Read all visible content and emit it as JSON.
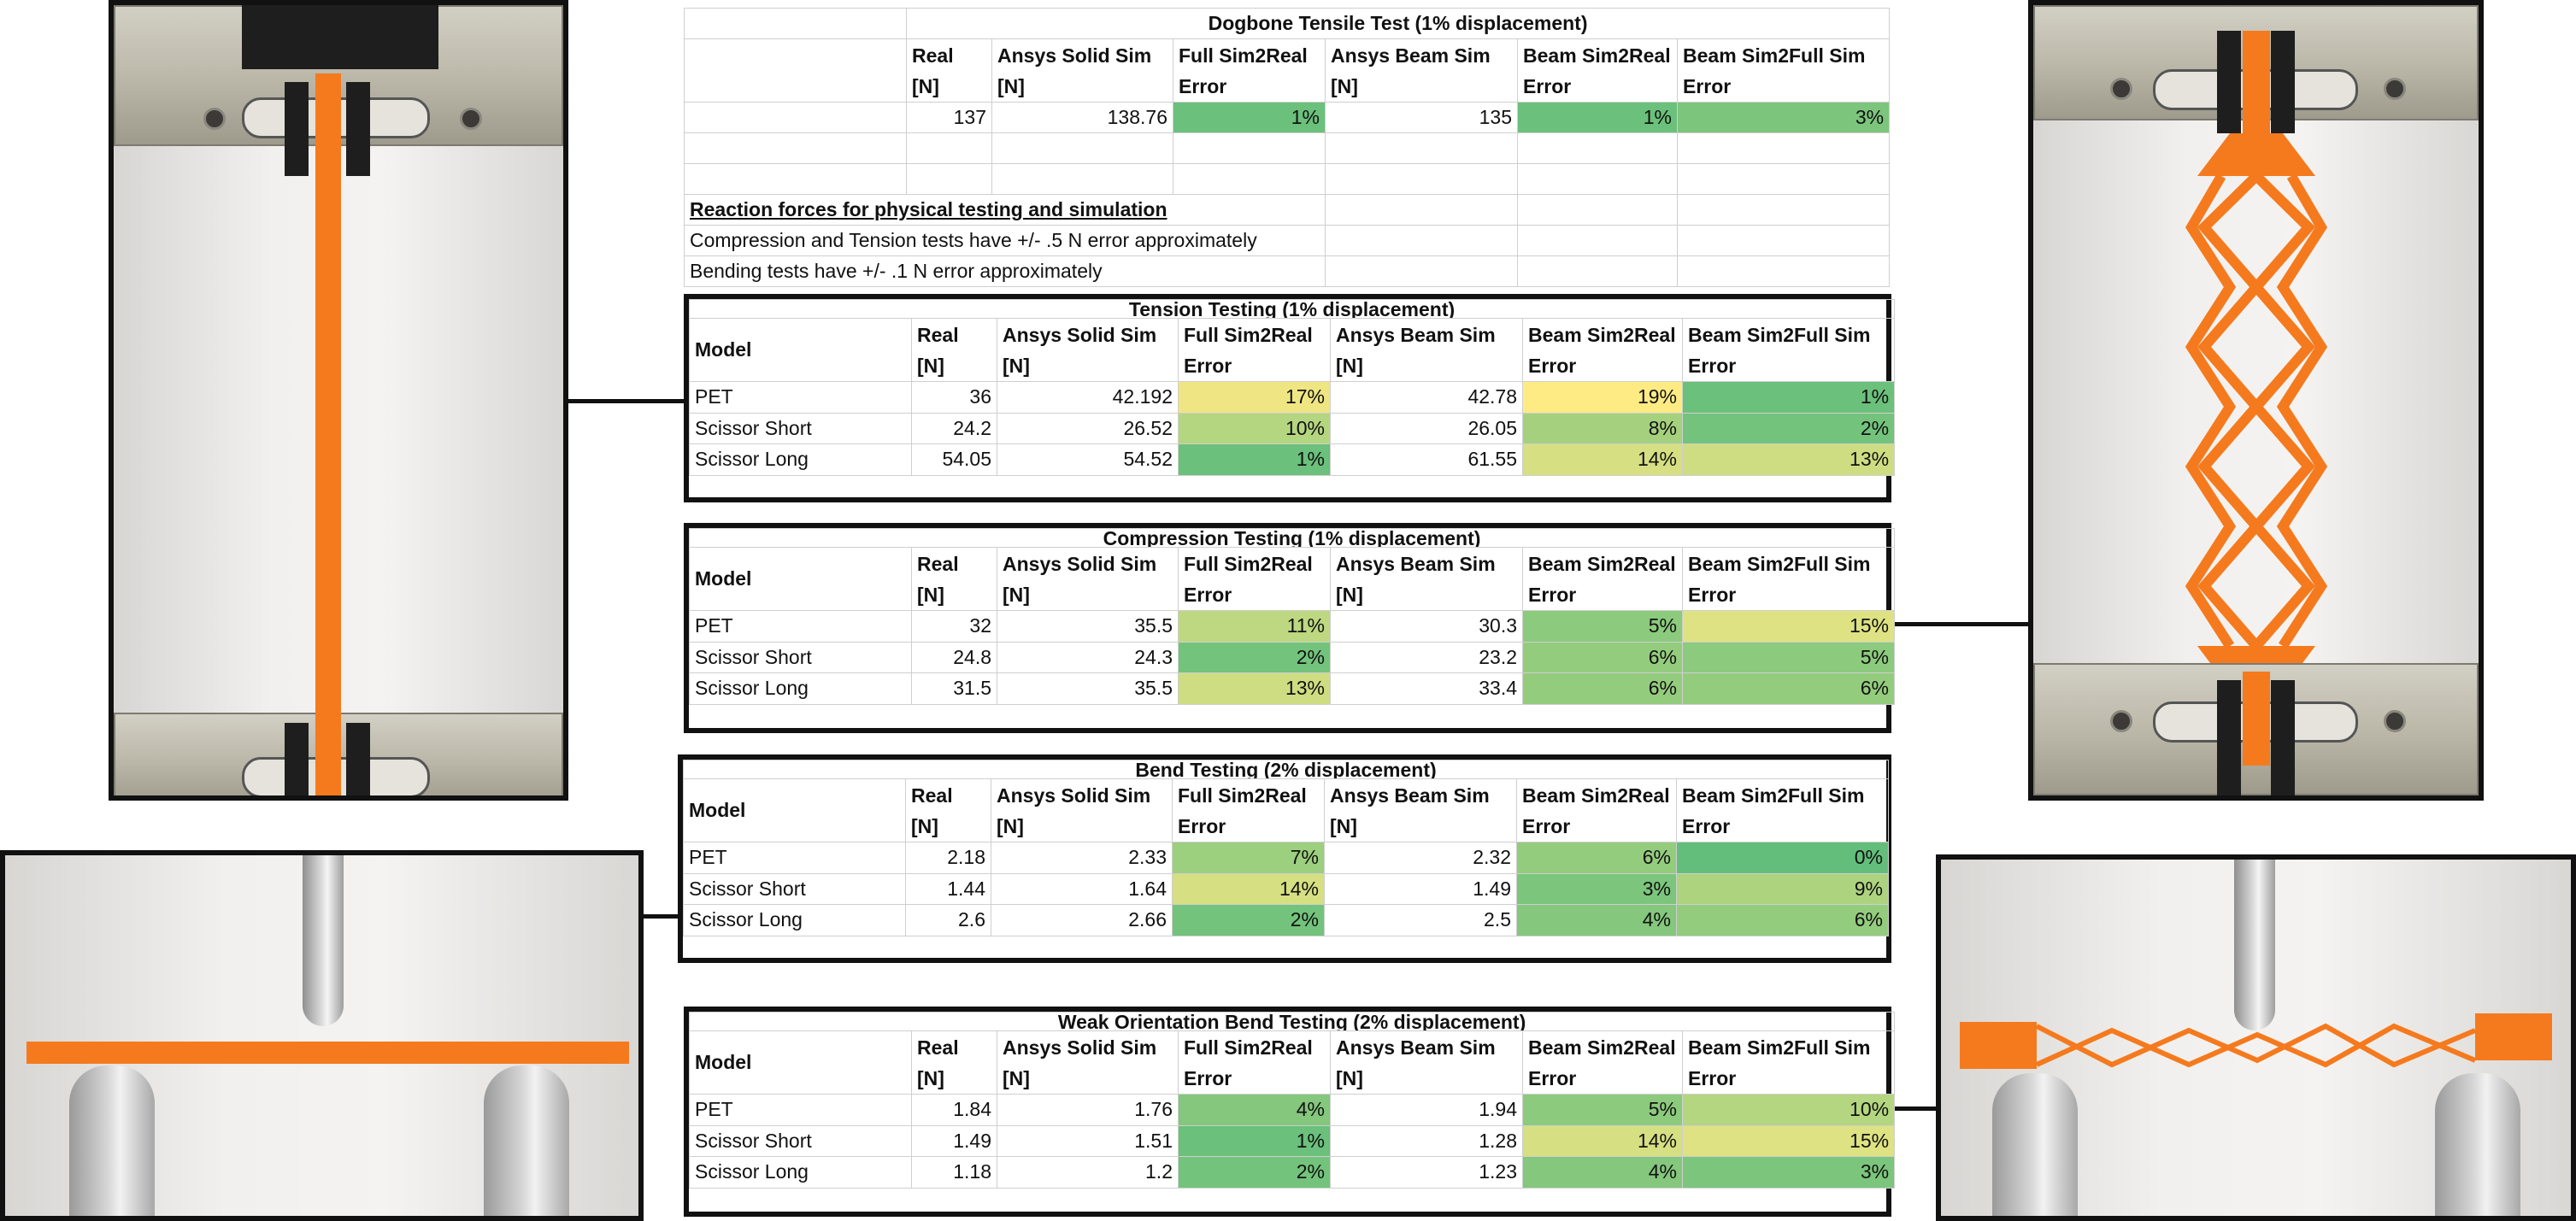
{
  "columns": {
    "model": "Model",
    "real": [
      "Real",
      "[N]"
    ],
    "solid": [
      "Ansys Solid Sim",
      "[N]"
    ],
    "full_err": [
      "Full Sim2Real",
      "Error"
    ],
    "beam": [
      "Ansys Beam Sim",
      "[N]"
    ],
    "beam_err": [
      "Beam Sim2Real",
      "Error"
    ],
    "beam_full": [
      "Beam Sim2Full Sim",
      "Error"
    ]
  },
  "dogbone": {
    "title": "Dogbone Tensile Test (1% displacement)",
    "row": {
      "real": "137",
      "solid": "138.76",
      "full_err": "1%",
      "beam": "135",
      "beam_err": "1%",
      "beam_full": "3%"
    }
  },
  "notes": {
    "heading": "Reaction forces for physical testing  and simulation",
    "line1": "Compression and Tension tests have +/- .5 N error approximately",
    "line2": "Bending tests have +/- .1 N error approximately"
  },
  "tension": {
    "title": "Tension Testing (1% displacement)",
    "rows": [
      {
        "model": "PET",
        "real": "36",
        "solid": "42.192",
        "full_err": "17%",
        "beam": "42.78",
        "beam_err": "19%",
        "beam_full": "1%"
      },
      {
        "model": "Scissor Short",
        "real": "24.2",
        "solid": "26.52",
        "full_err": "10%",
        "beam": "26.05",
        "beam_err": "8%",
        "beam_full": "2%"
      },
      {
        "model": "Scissor Long",
        "real": "54.05",
        "solid": "54.52",
        "full_err": "1%",
        "beam": "61.55",
        "beam_err": "14%",
        "beam_full": "13%"
      }
    ]
  },
  "compression": {
    "title": "Compression Testing  (1% displacement)",
    "rows": [
      {
        "model": "PET",
        "real": "32",
        "solid": "35.5",
        "full_err": "11%",
        "beam": "30.3",
        "beam_err": "5%",
        "beam_full": "15%"
      },
      {
        "model": "Scissor Short",
        "real": "24.8",
        "solid": "24.3",
        "full_err": "2%",
        "beam": "23.2",
        "beam_err": "6%",
        "beam_full": "5%"
      },
      {
        "model": "Scissor Long",
        "real": "31.5",
        "solid": "35.5",
        "full_err": "13%",
        "beam": "33.4",
        "beam_err": "6%",
        "beam_full": "6%"
      }
    ]
  },
  "bend": {
    "title": "Bend Testing  (2% displacement)",
    "rows": [
      {
        "model": "PET",
        "real": "2.18",
        "solid": "2.33",
        "full_err": "7%",
        "beam": "2.32",
        "beam_err": "6%",
        "beam_full": "0%"
      },
      {
        "model": "Scissor Short",
        "real": "1.44",
        "solid": "1.64",
        "full_err": "14%",
        "beam": "1.49",
        "beam_err": "3%",
        "beam_full": "9%"
      },
      {
        "model": "Scissor Long",
        "real": "2.6",
        "solid": "2.66",
        "full_err": "2%",
        "beam": "2.5",
        "beam_err": "4%",
        "beam_full": "6%"
      }
    ]
  },
  "weak": {
    "title": "Weak Orientation Bend Testing  (2% displacement)",
    "rows": [
      {
        "model": "PET",
        "real": "1.84",
        "solid": "1.76",
        "full_err": "4%",
        "beam": "1.94",
        "beam_err": "5%",
        "beam_full": "10%"
      },
      {
        "model": "Scissor Short",
        "real": "1.49",
        "solid": "1.51",
        "full_err": "1%",
        "beam": "1.28",
        "beam_err": "14%",
        "beam_full": "15%"
      },
      {
        "model": "Scissor Long",
        "real": "1.18",
        "solid": "1.2",
        "full_err": "2%",
        "beam": "1.23",
        "beam_err": "4%",
        "beam_full": "3%"
      }
    ]
  },
  "heat_colors": {
    "low": "#63be7b",
    "high": "#ffeb84"
  },
  "photo_colors": {
    "specimen": "#f57a1e",
    "grip": "#bab6a7",
    "background": "#f1f0ee"
  }
}
